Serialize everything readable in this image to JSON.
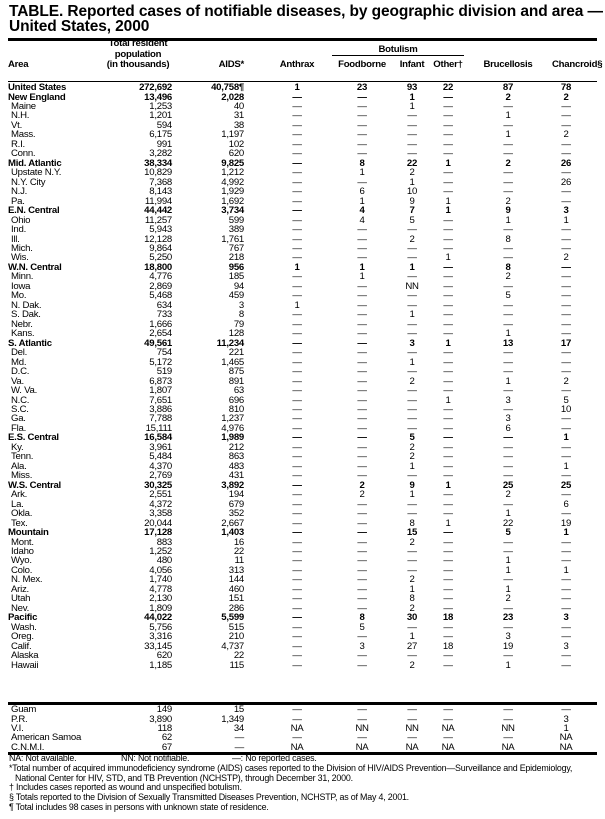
{
  "title": "TABLE. Reported cases of notifiable diseases, by geographic division and area — United States, 2000",
  "headers": {
    "area": "Area",
    "population_line1": "Total resident",
    "population_line2": "population",
    "population_line3": "(in thousands)",
    "aids": "AIDS*",
    "anthrax": "Anthrax",
    "botulism": "Botulism",
    "foodborne": "Foodborne",
    "infant": "Infant",
    "other": "Other†",
    "brucellosis": "Brucellosis",
    "chancroid": "Chancroid§"
  },
  "rows": [
    [
      "United States",
      "272,692",
      "40,758¶",
      "1",
      "23",
      "93",
      "22",
      "87",
      "78",
      true
    ],
    [
      "New England",
      "13,496",
      "2,028",
      "—",
      "—",
      "1",
      "—",
      "2",
      "2",
      true
    ],
    [
      "Maine",
      "1,253",
      "40",
      "—",
      "—",
      "1",
      "—",
      "—",
      "—",
      false
    ],
    [
      "N.H.",
      "1,201",
      "31",
      "—",
      "—",
      "—",
      "—",
      "1",
      "—",
      false
    ],
    [
      "Vt.",
      "594",
      "38",
      "—",
      "—",
      "—",
      "—",
      "—",
      "—",
      false
    ],
    [
      "Mass.",
      "6,175",
      "1,197",
      "—",
      "—",
      "—",
      "—",
      "1",
      "2",
      false
    ],
    [
      "R.I.",
      "991",
      "102",
      "—",
      "—",
      "—",
      "—",
      "—",
      "—",
      false
    ],
    [
      "Conn.",
      "3,282",
      "620",
      "—",
      "—",
      "—",
      "—",
      "—",
      "—",
      false
    ],
    [
      "Mid. Atlantic",
      "38,334",
      "9,825",
      "—",
      "8",
      "22",
      "1",
      "2",
      "26",
      true
    ],
    [
      "Upstate N.Y.",
      "10,829",
      "1,212",
      "—",
      "1",
      "2",
      "—",
      "—",
      "—",
      false
    ],
    [
      "N.Y. City",
      "7,368",
      "4,992",
      "—",
      "—",
      "1",
      "—",
      "—",
      "26",
      false
    ],
    [
      "N.J.",
      "8,143",
      "1,929",
      "—",
      "6",
      "10",
      "—",
      "—",
      "—",
      false
    ],
    [
      "Pa.",
      "11,994",
      "1,692",
      "—",
      "1",
      "9",
      "1",
      "2",
      "—",
      false
    ],
    [
      "E.N. Central",
      "44,442",
      "3,734",
      "—",
      "4",
      "7",
      "1",
      "9",
      "3",
      true
    ],
    [
      "Ohio",
      "11,257",
      "599",
      "—",
      "4",
      "5",
      "—",
      "1",
      "1",
      false
    ],
    [
      "Ind.",
      "5,943",
      "389",
      "—",
      "—",
      "—",
      "—",
      "—",
      "—",
      false
    ],
    [
      "Ill.",
      "12,128",
      "1,761",
      "—",
      "—",
      "2",
      "—",
      "8",
      "—",
      false
    ],
    [
      "Mich.",
      "9,864",
      "767",
      "—",
      "—",
      "—",
      "—",
      "—",
      "—",
      false
    ],
    [
      "Wis.",
      "5,250",
      "218",
      "—",
      "—",
      "—",
      "1",
      "—",
      "2",
      false
    ],
    [
      "W.N. Central",
      "18,800",
      "956",
      "1",
      "1",
      "1",
      "—",
      "8",
      "—",
      true
    ],
    [
      "Minn.",
      "4,776",
      "185",
      "—",
      "1",
      "—",
      "—",
      "2",
      "—",
      false
    ],
    [
      "Iowa",
      "2,869",
      "94",
      "—",
      "—",
      "NN",
      "—",
      "—",
      "—",
      false
    ],
    [
      "Mo.",
      "5,468",
      "459",
      "—",
      "—",
      "—",
      "—",
      "5",
      "—",
      false
    ],
    [
      "N. Dak.",
      "634",
      "3",
      "1",
      "—",
      "—",
      "—",
      "—",
      "—",
      false
    ],
    [
      "S. Dak.",
      "733",
      "8",
      "—",
      "—",
      "1",
      "—",
      "—",
      "—",
      false
    ],
    [
      "Nebr.",
      "1,666",
      "79",
      "—",
      "—",
      "—",
      "—",
      "—",
      "—",
      false
    ],
    [
      "Kans.",
      "2,654",
      "128",
      "—",
      "—",
      "—",
      "—",
      "1",
      "—",
      false
    ],
    [
      "S. Atlantic",
      "49,561",
      "11,234",
      "—",
      "—",
      "3",
      "1",
      "13",
      "17",
      true
    ],
    [
      "Del.",
      "754",
      "221",
      "—",
      "—",
      "—",
      "—",
      "—",
      "—",
      false
    ],
    [
      "Md.",
      "5,172",
      "1,465",
      "—",
      "—",
      "1",
      "—",
      "—",
      "—",
      false
    ],
    [
      "D.C.",
      "519",
      "875",
      "—",
      "—",
      "—",
      "—",
      "—",
      "—",
      false
    ],
    [
      "Va.",
      "6,873",
      "891",
      "—",
      "—",
      "2",
      "—",
      "1",
      "2",
      false
    ],
    [
      "W. Va.",
      "1,807",
      "63",
      "—",
      "—",
      "—",
      "—",
      "—",
      "—",
      false
    ],
    [
      "N.C.",
      "7,651",
      "696",
      "—",
      "—",
      "—",
      "1",
      "3",
      "5",
      false
    ],
    [
      "S.C.",
      "3,886",
      "810",
      "—",
      "—",
      "—",
      "—",
      "—",
      "10",
      false
    ],
    [
      "Ga.",
      "7,788",
      "1,237",
      "—",
      "—",
      "—",
      "—",
      "3",
      "—",
      false
    ],
    [
      "Fla.",
      "15,111",
      "4,976",
      "—",
      "—",
      "—",
      "—",
      "6",
      "—",
      false
    ],
    [
      "E.S. Central",
      "16,584",
      "1,989",
      "—",
      "—",
      "5",
      "—",
      "—",
      "1",
      true
    ],
    [
      "Ky.",
      "3,961",
      "212",
      "—",
      "—",
      "2",
      "—",
      "—",
      "—",
      false
    ],
    [
      "Tenn.",
      "5,484",
      "863",
      "—",
      "—",
      "2",
      "—",
      "—",
      "—",
      false
    ],
    [
      "Ala.",
      "4,370",
      "483",
      "—",
      "—",
      "1",
      "—",
      "—",
      "1",
      false
    ],
    [
      "Miss.",
      "2,769",
      "431",
      "—",
      "—",
      "—",
      "—",
      "—",
      "—",
      false
    ],
    [
      "W.S. Central",
      "30,325",
      "3,892",
      "—",
      "2",
      "9",
      "1",
      "25",
      "25",
      true
    ],
    [
      "Ark.",
      "2,551",
      "194",
      "—",
      "2",
      "1",
      "—",
      "2",
      "—",
      false
    ],
    [
      "La.",
      "4,372",
      "679",
      "—",
      "—",
      "—",
      "—",
      "—",
      "6",
      false
    ],
    [
      "Okla.",
      "3,358",
      "352",
      "—",
      "—",
      "—",
      "—",
      "1",
      "—",
      false
    ],
    [
      "Tex.",
      "20,044",
      "2,667",
      "—",
      "—",
      "8",
      "1",
      "22",
      "19",
      false
    ],
    [
      "Mountain",
      "17,128",
      "1,403",
      "—",
      "—",
      "15",
      "—",
      "5",
      "1",
      true
    ],
    [
      "Mont.",
      "883",
      "16",
      "—",
      "—",
      "2",
      "—",
      "—",
      "—",
      false
    ],
    [
      "Idaho",
      "1,252",
      "22",
      "—",
      "—",
      "—",
      "—",
      "—",
      "—",
      false
    ],
    [
      "Wyo.",
      "480",
      "11",
      "—",
      "—",
      "—",
      "—",
      "1",
      "—",
      false
    ],
    [
      "Colo.",
      "4,056",
      "313",
      "—",
      "—",
      "—",
      "—",
      "1",
      "1",
      false
    ],
    [
      "N. Mex.",
      "1,740",
      "144",
      "—",
      "—",
      "2",
      "—",
      "—",
      "—",
      false
    ],
    [
      "Ariz.",
      "4,778",
      "460",
      "—",
      "—",
      "1",
      "—",
      "1",
      "—",
      false
    ],
    [
      "Utah",
      "2,130",
      "151",
      "—",
      "—",
      "8",
      "—",
      "2",
      "—",
      false
    ],
    [
      "Nev.",
      "1,809",
      "286",
      "—",
      "—",
      "2",
      "—",
      "—",
      "—",
      false
    ],
    [
      "Pacific",
      "44,022",
      "5,599",
      "—",
      "8",
      "30",
      "18",
      "23",
      "3",
      true
    ],
    [
      "Wash.",
      "5,756",
      "515",
      "—",
      "5",
      "—",
      "—",
      "—",
      "—",
      false
    ],
    [
      "Oreg.",
      "3,316",
      "210",
      "—",
      "—",
      "1",
      "—",
      "3",
      "—",
      false
    ],
    [
      "Calif.",
      "33,145",
      "4,737",
      "—",
      "3",
      "27",
      "18",
      "19",
      "3",
      false
    ],
    [
      "Alaska",
      "620",
      "22",
      "—",
      "—",
      "—",
      "—",
      "—",
      "—",
      false
    ],
    [
      "Hawaii",
      "1,185",
      "115",
      "—",
      "—",
      "2",
      "—",
      "1",
      "—",
      false
    ]
  ],
  "territories": [
    [
      "Guam",
      "149",
      "15",
      "—",
      "—",
      "—",
      "—",
      "—",
      "—",
      false
    ],
    [
      "P.R.",
      "3,890",
      "1,349",
      "—",
      "—",
      "—",
      "—",
      "—",
      "3",
      false
    ],
    [
      "V.I.",
      "118",
      "34",
      "NA",
      "NN",
      "NN",
      "NA",
      "NN",
      "1",
      false
    ],
    [
      "American Samoa",
      "62",
      "—",
      "—",
      "—",
      "—",
      "—",
      "—",
      "NA",
      false
    ],
    [
      "C.N.M.I.",
      "67",
      "—",
      "NA",
      "NA",
      "NA",
      "NA",
      "NA",
      "NA",
      false
    ]
  ],
  "footer": {
    "legend_na": "NA: Not available.",
    "legend_nn": "NN: Not notifiable.",
    "legend_dash": "—: No reported cases.",
    "note_aids": "*Total number of acquired immunodeficiency syndrome (AIDS) cases reported to the Division of HIV/AIDS Prevention—Surveillance and Epidemiology, National Center for HIV, STD, and TB Prevention (NCHSTP), through December 31, 2000.",
    "note_other": "† Includes cases reported as wound and unspecified botulism.",
    "note_chancroid": "§ Totals reported to the Division of Sexually Transmitted Diseases Prevention, NCHSTP, as of May 4, 2001.",
    "note_total": "¶ Total includes 98 cases in persons with unknown state of residence."
  }
}
